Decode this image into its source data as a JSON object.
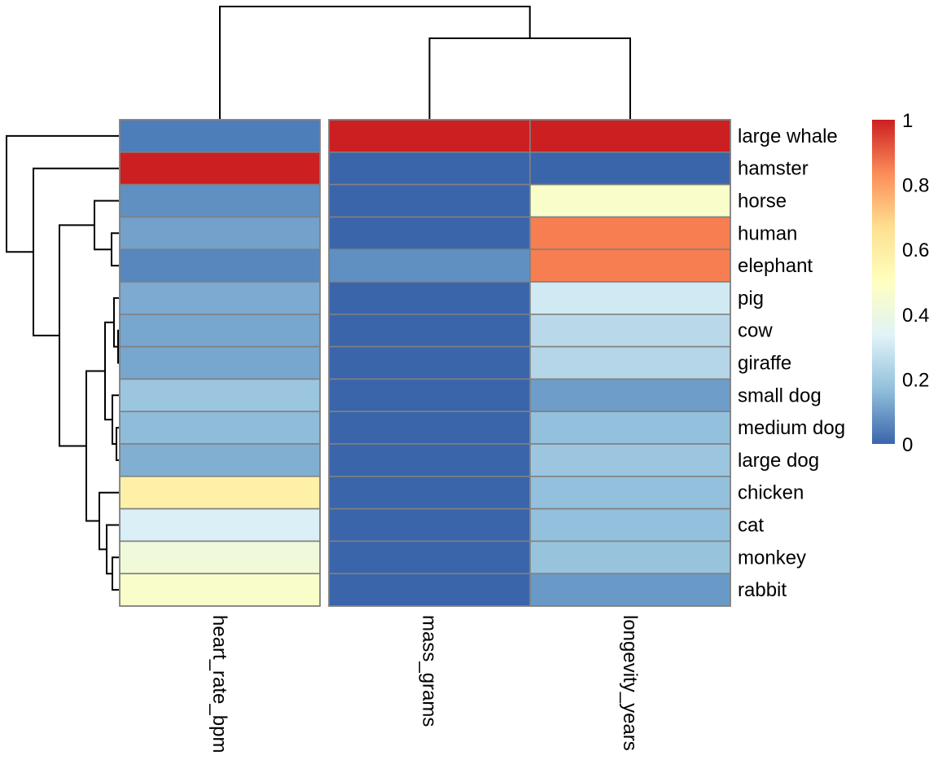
{
  "chart_data": {
    "type": "heatmap",
    "title": "",
    "columns": [
      "heart_rate_bpm",
      "mass_grams",
      "longevity_years"
    ],
    "rows": [
      "large whale",
      "hamster",
      "horse",
      "human",
      "elephant",
      "pig",
      "cow",
      "giraffe",
      "small dog",
      "medium dog",
      "large dog",
      "chicken",
      "cat",
      "monkey",
      "rabbit"
    ],
    "values": [
      [
        0.02,
        1.0,
        1.0
      ],
      [
        1.0,
        0.0,
        0.0
      ],
      [
        0.06,
        0.0,
        0.47
      ],
      [
        0.1,
        0.0,
        0.86
      ],
      [
        0.04,
        0.06,
        0.86
      ],
      [
        0.12,
        0.0,
        0.3
      ],
      [
        0.11,
        0.0,
        0.25
      ],
      [
        0.11,
        0.0,
        0.24
      ],
      [
        0.19,
        0.0,
        0.09
      ],
      [
        0.16,
        0.0,
        0.17
      ],
      [
        0.13,
        0.0,
        0.19
      ],
      [
        0.58,
        0.0,
        0.17
      ],
      [
        0.32,
        0.0,
        0.17
      ],
      [
        0.42,
        0.0,
        0.18
      ],
      [
        0.47,
        0.0,
        0.08
      ]
    ],
    "column_gap_after": 0,
    "legend": {
      "position": "right",
      "range": [
        0,
        1
      ],
      "ticks": [
        "0",
        "0.2",
        "0.4",
        "0.6",
        "0.8",
        "1"
      ],
      "palette": [
        "#4575B4",
        "#91BFDB",
        "#E0F3F8",
        "#FFFFBF",
        "#FEE090",
        "#FC8D59",
        "#D73027"
      ]
    },
    "palette_ends": {
      "low": "#3A65AB",
      "high": "#CC1F21"
    },
    "border_color": "#808080"
  }
}
